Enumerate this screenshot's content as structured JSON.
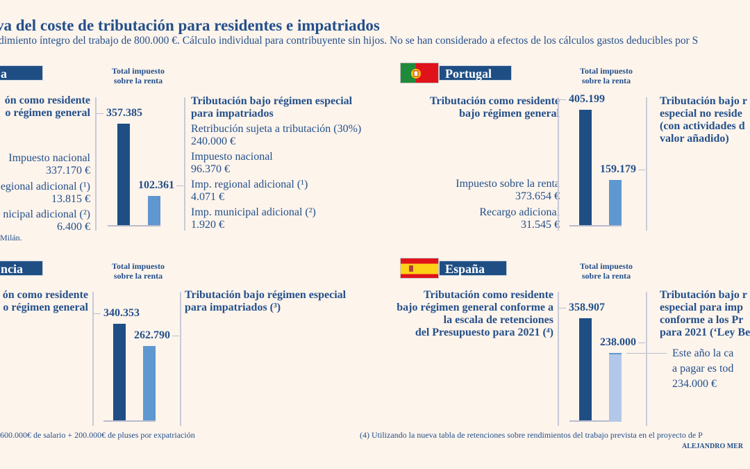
{
  "title": "va del coste de tributación para residentes e impatriados",
  "subtitle": "dimiento íntegro del trabajo de 800.000 €. Cálculo individual para contribuyente sin hijos. No se han considerado a efectos de los cálculos gastos deducibles por S",
  "colors": {
    "background": "#fdf4ec",
    "text": "#24508a",
    "resident_bar": "#1f4e84",
    "special_bar": "#5f97d0",
    "spain_special_bar": "#b3c8e8"
  },
  "panels": {
    "italy": {
      "header": "a",
      "total_label": [
        "Total impuesto",
        "sobre la renta"
      ],
      "left": [
        "ón como residente",
        "o régimen general",
        "Impuesto nacional",
        "337.170 €",
        "egional adicional (¹)",
        "13.815 €",
        "nicipal adicional (²)",
        "6.400 €"
      ],
      "note": "Milán.",
      "right": [
        "Tributación bajo régimen especial",
        "para impatriados",
        "Retribución sujeta a tributación (30%)",
        "240.000 €",
        "Impuesto nacional",
        "96.370 €",
        "Imp. regional adicional (¹)",
        "4.071 €",
        "Imp. municipal adicional (²)",
        "1.920 €"
      ]
    },
    "portugal": {
      "header": "Portugal",
      "flag_icon": "portugal-flag",
      "total_label": [
        "Total impuesto",
        "sobre la renta"
      ],
      "left": [
        "Tributación como residente",
        "bajo régimen general",
        "Impuesto sobre la renta",
        "373.654 €",
        "Recargo adicional",
        "31.545 €"
      ],
      "right": [
        "Tributación bajo r",
        "especial no reside",
        "(con actividades d",
        "valor añadido)"
      ]
    },
    "france": {
      "header": "ncia",
      "total_label": [
        "Total impuesto",
        "sobre la renta"
      ],
      "left": [
        "ón como residente",
        "o régimen general"
      ],
      "right": [
        "Tributación bajo régimen especial",
        "para impatriados (³)"
      ]
    },
    "spain": {
      "header": "España",
      "flag_icon": "spain-flag",
      "total_label": [
        "Total impuesto",
        "sobre la renta"
      ],
      "left": [
        "Tributación como residente",
        "bajo régimen general conforme a",
        "la escala de retenciones",
        "del Presupuesto para 2021 (⁴)"
      ],
      "right": [
        "Tributación bajo r",
        "especial para imp",
        "conforme a los Pr",
        "para 2021 (‘Ley Be"
      ],
      "callout": [
        "Este año la ca",
        "a pagar es tod",
        "234.000 €"
      ]
    }
  },
  "footnotes": {
    "left": "600.000€ de salario + 200.000€ de pluses por expatriación",
    "right": "(4) Utilizando la nueva tabla de retenciones sobre rendimientos del trabajo prevista en el proyecto de P",
    "credit": "ALEJANDRO MER"
  },
  "chart_data": [
    {
      "type": "bar",
      "panel": "italy",
      "values": [
        357385,
        102361
      ],
      "value_labels": [
        "357.385",
        "102.361"
      ]
    },
    {
      "type": "bar",
      "panel": "portugal",
      "values": [
        405199,
        159179
      ],
      "value_labels": [
        "405.199",
        "159.179"
      ]
    },
    {
      "type": "bar",
      "panel": "france",
      "values": [
        340353,
        262790
      ],
      "value_labels": [
        "340.353",
        "262.790"
      ]
    },
    {
      "type": "bar",
      "panel": "spain",
      "values": [
        358907,
        238000
      ],
      "value_labels": [
        "358.907",
        "238.000"
      ]
    }
  ]
}
